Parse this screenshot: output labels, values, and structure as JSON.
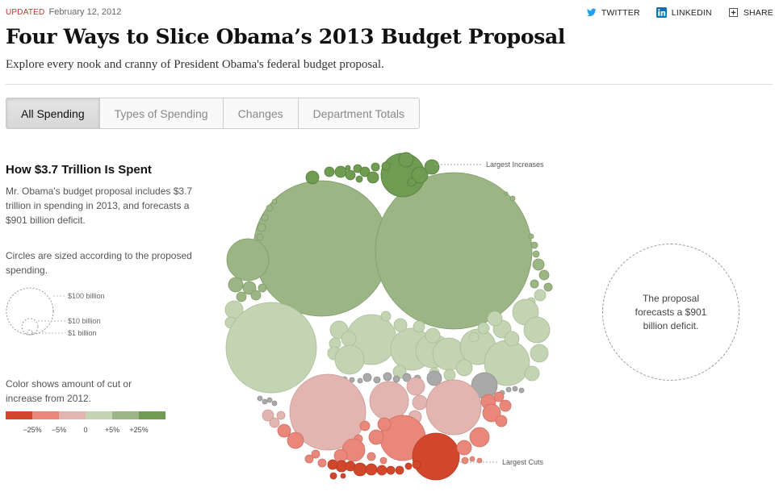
{
  "header": {
    "updated_label": "UPDATED",
    "updated_date": "February 12, 2012",
    "title": "Four Ways to Slice Obama’s 2013 Budget Proposal",
    "subtitle": "Explore every nook and cranny of President Obama's federal budget proposal."
  },
  "share": {
    "twitter": "TWITTER",
    "linkedin": "LINKEDIN",
    "share": "SHARE",
    "icons": [
      "twitter-icon",
      "linkedin-icon",
      "share-icon"
    ],
    "twitter_color": "#1da1f2",
    "linkedin_color": "#0077b5"
  },
  "tabs": [
    {
      "label": "All Spending",
      "active": true
    },
    {
      "label": "Types of Spending",
      "active": false
    },
    {
      "label": "Changes",
      "active": false
    },
    {
      "label": "Department Totals",
      "active": false
    }
  ],
  "sidebar": {
    "heading": "How $3.7 Trillion Is Spent",
    "description": "Mr. Obama's budget proposal includes $3.7 trillion in spending in 2013, and forecasts a $901 billion deficit.",
    "size_note": "Circles are sized according to the proposed spending.",
    "size_legend": [
      "$100 billion",
      "$10 billion",
      "$1 billion"
    ],
    "color_note": "Color shows amount of cut or increase from 2012.",
    "color_scale": [
      "#d2472c",
      "#e8877a",
      "#e3b5b1",
      "#c3d4b2",
      "#9cb585",
      "#6f9b52"
    ],
    "color_labels": [
      "−25%",
      "−5%",
      "0",
      "+5%",
      "+25%"
    ]
  },
  "chart": {
    "label_increases": "Largest Increases",
    "label_cuts": "Largest Cuts",
    "deficit_text": "The proposal forecasts a $901 billion deficit."
  }
}
